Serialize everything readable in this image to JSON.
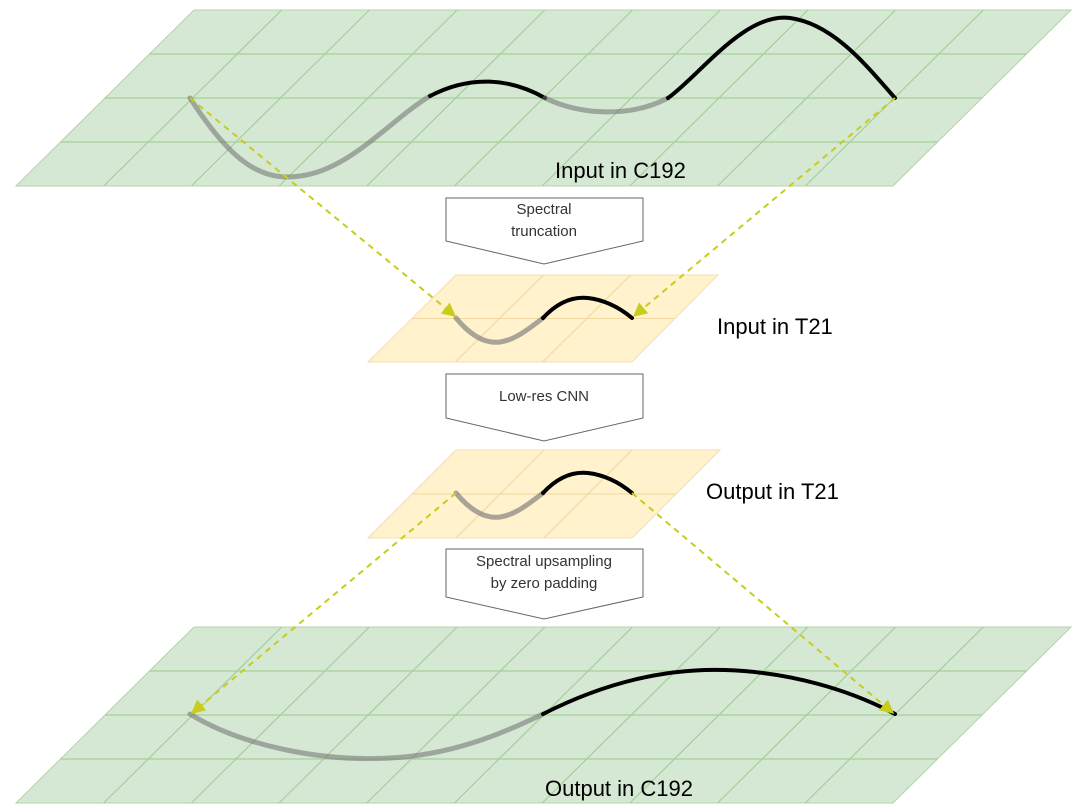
{
  "layers": {
    "input_c192": {
      "label": "Input in C192"
    },
    "input_t21": {
      "label": "Input in T21"
    },
    "output_t21": {
      "label": "Output in T21"
    },
    "output_c192": {
      "label": "Output in C192"
    }
  },
  "steps": {
    "truncation": {
      "line1": "Spectral",
      "line2": "truncation"
    },
    "cnn": {
      "label": "Low-res CNN"
    },
    "upsampling": {
      "line1": "Spectral upsampling",
      "line2": "by zero padding"
    }
  },
  "colors": {
    "hires_fill": "#d5e8d4",
    "hires_stroke": "#82b366",
    "lowres_fill": "#fff2cc",
    "lowres_stroke": "#f5d9a3",
    "arrow": "#c8cc1a",
    "curve": "#000000",
    "curve_hidden": "#7a7a7a",
    "box_stroke": "#666666"
  }
}
